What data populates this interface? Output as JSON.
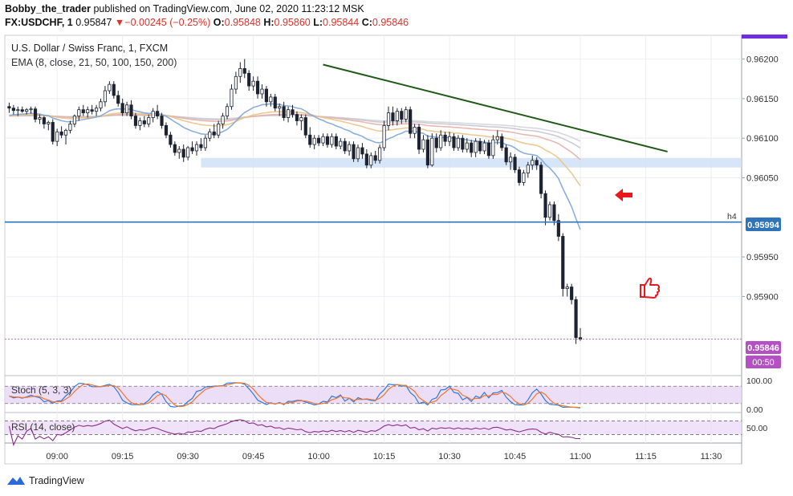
{
  "header": {
    "line1": {
      "author": "Bobby_the_trader",
      "rest": " published on TradingView.com, June 02, 2020 11:23:12 MSK"
    },
    "line2": {
      "symbol": "FX:USDCHF, 1",
      "last": "0.95847",
      "change": "−0.00245 (−0.25%)",
      "o_label": "O:",
      "o": "0.95848",
      "h_label": "H:",
      "h": "0.95860",
      "l_label": "L:",
      "l": "0.95844",
      "c_label": "C:",
      "c": "0.95846"
    },
    "arrow_down": "▼"
  },
  "footer": {
    "brand": "TradingView"
  },
  "colors": {
    "up": "#1d2230",
    "down": "#1d2230",
    "trendline": "#1e5a16",
    "support": "#2f74b8",
    "zone": "#cfe0f7",
    "stoch": "#e9d6f5",
    "rsi_line": "#8a2f8a",
    "accent": "#6f2de0"
  },
  "chart_data": [
    {
      "type": "candlestick",
      "title": "U.S. Dollar / Swiss Franc, 1, FXCM",
      "indicator_label": "EMA (8, close, 21, 50, 100, 150, 200)",
      "ylim": [
        0.958,
        0.9623
      ],
      "y_ticks": [
        "0.96200",
        "0.96150",
        "0.96100",
        "0.96050",
        "0.95950",
        "0.95900"
      ],
      "x_ticks": [
        "09:00",
        "09:15",
        "09:30",
        "09:45",
        "10:00",
        "10:15",
        "10:30",
        "10:45",
        "11:00",
        "11:15",
        "11:30"
      ],
      "x_tick_minutes": [
        540,
        555,
        570,
        585,
        600,
        615,
        630,
        645,
        660,
        675,
        690
      ],
      "x_range_minutes": [
        528,
        697
      ],
      "price_labels": {
        "support": "0.95994",
        "last": "0.95846",
        "countdown": "00:50",
        "h4_tag": "h4"
      },
      "support_level": 0.95994,
      "zone": {
        "from_minute": 573,
        "to_minute": 697,
        "low": 0.96063,
        "high": 0.96075
      },
      "trendline": {
        "from": [
          601,
          0.96193
        ],
        "to": [
          680,
          0.96083
        ]
      },
      "annotations": [
        "red-arrow at 11:15 0.96030",
        "thumbs-up at 11:20 0.95914"
      ],
      "candles": [
        [
          0.9614,
          0.96145,
          0.96132,
          0.96138
        ],
        [
          0.96138,
          0.96142,
          0.9613,
          0.96135
        ],
        [
          0.96135,
          0.9614,
          0.96128,
          0.96136
        ],
        [
          0.96136,
          0.9614,
          0.96132,
          0.96134
        ],
        [
          0.96134,
          0.96138,
          0.9613,
          0.96136
        ],
        [
          0.96136,
          0.9614,
          0.96131,
          0.96137
        ],
        [
          0.96137,
          0.9614,
          0.9612,
          0.96124
        ],
        [
          0.96124,
          0.9613,
          0.96118,
          0.96126
        ],
        [
          0.96126,
          0.96128,
          0.96112,
          0.96118
        ],
        [
          0.96118,
          0.96122,
          0.9611,
          0.9612
        ],
        [
          0.9612,
          0.96124,
          0.96092,
          0.96096
        ],
        [
          0.96096,
          0.96112,
          0.9609,
          0.96108
        ],
        [
          0.96108,
          0.96115,
          0.961,
          0.96104
        ],
        [
          0.96104,
          0.96112,
          0.96092,
          0.9611
        ],
        [
          0.9611,
          0.96122,
          0.96106,
          0.96118
        ],
        [
          0.96118,
          0.9613,
          0.96114,
          0.96128
        ],
        [
          0.96128,
          0.9614,
          0.96122,
          0.96136
        ],
        [
          0.96136,
          0.96142,
          0.96128,
          0.96132
        ],
        [
          0.96132,
          0.9614,
          0.96126,
          0.96136
        ],
        [
          0.96136,
          0.96142,
          0.9613,
          0.96134
        ],
        [
          0.96134,
          0.96142,
          0.96128,
          0.96138
        ],
        [
          0.96138,
          0.9615,
          0.96134,
          0.96146
        ],
        [
          0.96146,
          0.96166,
          0.9614,
          0.9616
        ],
        [
          0.9616,
          0.96172,
          0.96156,
          0.96168
        ],
        [
          0.96168,
          0.96172,
          0.9615,
          0.96154
        ],
        [
          0.96154,
          0.9616,
          0.9614,
          0.96144
        ],
        [
          0.96144,
          0.9615,
          0.96128,
          0.96132
        ],
        [
          0.96132,
          0.96146,
          0.96128,
          0.96142
        ],
        [
          0.96142,
          0.96148,
          0.96124,
          0.96128
        ],
        [
          0.96128,
          0.96132,
          0.96112,
          0.96116
        ],
        [
          0.96116,
          0.96126,
          0.9611,
          0.96122
        ],
        [
          0.96122,
          0.96128,
          0.96114,
          0.96118
        ],
        [
          0.96118,
          0.9613,
          0.96114,
          0.96126
        ],
        [
          0.96126,
          0.96138,
          0.9612,
          0.96134
        ],
        [
          0.96134,
          0.96142,
          0.96124,
          0.96128
        ],
        [
          0.96128,
          0.96132,
          0.96112,
          0.96116
        ],
        [
          0.96116,
          0.9612,
          0.961,
          0.96104
        ],
        [
          0.96104,
          0.96108,
          0.96088,
          0.96092
        ],
        [
          0.96092,
          0.96096,
          0.96078,
          0.96082
        ],
        [
          0.96082,
          0.9609,
          0.96074,
          0.96086
        ],
        [
          0.96086,
          0.96092,
          0.9607,
          0.96076
        ],
        [
          0.96076,
          0.9609,
          0.96072,
          0.96088
        ],
        [
          0.96088,
          0.96096,
          0.9608,
          0.96084
        ],
        [
          0.96084,
          0.96096,
          0.96078,
          0.96092
        ],
        [
          0.96092,
          0.961,
          0.96084,
          0.96088
        ],
        [
          0.96088,
          0.96104,
          0.96084,
          0.961
        ],
        [
          0.961,
          0.96112,
          0.96096,
          0.96108
        ],
        [
          0.96108,
          0.96118,
          0.961,
          0.96104
        ],
        [
          0.96104,
          0.96122,
          0.961,
          0.96118
        ],
        [
          0.96118,
          0.96132,
          0.96112,
          0.96128
        ],
        [
          0.96128,
          0.96144,
          0.96124,
          0.9614
        ],
        [
          0.9614,
          0.96168,
          0.96136,
          0.96162
        ],
        [
          0.96162,
          0.96184,
          0.96156,
          0.96178
        ],
        [
          0.96178,
          0.96196,
          0.9617,
          0.96188
        ],
        [
          0.96188,
          0.962,
          0.96176,
          0.96182
        ],
        [
          0.96182,
          0.96186,
          0.9616,
          0.96166
        ],
        [
          0.96166,
          0.96178,
          0.9616,
          0.96172
        ],
        [
          0.96172,
          0.96178,
          0.9615,
          0.96156
        ],
        [
          0.96156,
          0.96168,
          0.9615,
          0.96162
        ],
        [
          0.96162,
          0.96166,
          0.9614,
          0.96146
        ],
        [
          0.96146,
          0.96156,
          0.9614,
          0.96152
        ],
        [
          0.96152,
          0.96156,
          0.96134,
          0.96138
        ],
        [
          0.96138,
          0.96144,
          0.96128,
          0.9614
        ],
        [
          0.9614,
          0.96146,
          0.96122,
          0.96126
        ],
        [
          0.96126,
          0.9614,
          0.9612,
          0.96136
        ],
        [
          0.96136,
          0.96142,
          0.96126,
          0.9613
        ],
        [
          0.9613,
          0.96134,
          0.96116,
          0.96122
        ],
        [
          0.96122,
          0.9613,
          0.9611,
          0.96126
        ],
        [
          0.96126,
          0.9613,
          0.961,
          0.96104
        ],
        [
          0.96104,
          0.96114,
          0.96088,
          0.96092
        ],
        [
          0.96092,
          0.96104,
          0.96086,
          0.961
        ],
        [
          0.961,
          0.96104,
          0.9609,
          0.96094
        ],
        [
          0.96094,
          0.96106,
          0.9609,
          0.96102
        ],
        [
          0.96102,
          0.96106,
          0.96088,
          0.96092
        ],
        [
          0.96092,
          0.96106,
          0.96088,
          0.96102
        ],
        [
          0.96102,
          0.96106,
          0.96086,
          0.9609
        ],
        [
          0.9609,
          0.961,
          0.96086,
          0.96096
        ],
        [
          0.96096,
          0.961,
          0.9608,
          0.96084
        ],
        [
          0.96084,
          0.96096,
          0.96078,
          0.96092
        ],
        [
          0.96092,
          0.96096,
          0.9607,
          0.96074
        ],
        [
          0.96074,
          0.96092,
          0.9607,
          0.96088
        ],
        [
          0.96088,
          0.96094,
          0.96074,
          0.9608
        ],
        [
          0.9608,
          0.96086,
          0.96062,
          0.96066
        ],
        [
          0.96066,
          0.96082,
          0.96062,
          0.96078
        ],
        [
          0.96078,
          0.96084,
          0.96068,
          0.96072
        ],
        [
          0.96072,
          0.96092,
          0.96068,
          0.96088
        ],
        [
          0.96088,
          0.96122,
          0.96084,
          0.96116
        ],
        [
          0.96116,
          0.9614,
          0.9611,
          0.96132
        ],
        [
          0.96132,
          0.9614,
          0.96116,
          0.96122
        ],
        [
          0.96122,
          0.96138,
          0.96116,
          0.96134
        ],
        [
          0.96134,
          0.96138,
          0.96118,
          0.96124
        ],
        [
          0.96124,
          0.9614,
          0.9612,
          0.96136
        ],
        [
          0.96136,
          0.9614,
          0.961,
          0.96106
        ],
        [
          0.96106,
          0.96118,
          0.961,
          0.96114
        ],
        [
          0.96114,
          0.96118,
          0.9608,
          0.96086
        ],
        [
          0.96086,
          0.96104,
          0.96082,
          0.96098
        ],
        [
          0.96098,
          0.96104,
          0.96062,
          0.96066
        ],
        [
          0.96066,
          0.96106,
          0.96064,
          0.961
        ],
        [
          0.961,
          0.96106,
          0.96082,
          0.96088
        ],
        [
          0.96088,
          0.9611,
          0.96084,
          0.96104
        ],
        [
          0.96104,
          0.96108,
          0.9609,
          0.96096
        ],
        [
          0.96096,
          0.96108,
          0.9609,
          0.96102
        ],
        [
          0.96102,
          0.96106,
          0.96084,
          0.96088
        ],
        [
          0.96088,
          0.96104,
          0.96084,
          0.961
        ],
        [
          0.961,
          0.96104,
          0.96082,
          0.96086
        ],
        [
          0.96086,
          0.961,
          0.96082,
          0.96094
        ],
        [
          0.96094,
          0.96098,
          0.96076,
          0.96082
        ],
        [
          0.96082,
          0.961,
          0.96076,
          0.96096
        ],
        [
          0.96096,
          0.961,
          0.9608,
          0.96084
        ],
        [
          0.96084,
          0.96098,
          0.9608,
          0.96094
        ],
        [
          0.96094,
          0.96098,
          0.96074,
          0.96078
        ],
        [
          0.96078,
          0.96104,
          0.96074,
          0.96098
        ],
        [
          0.96098,
          0.9611,
          0.96092,
          0.96102
        ],
        [
          0.96102,
          0.96106,
          0.96084,
          0.96088
        ],
        [
          0.96088,
          0.96092,
          0.96066,
          0.9607
        ],
        [
          0.9607,
          0.96082,
          0.9606,
          0.96076
        ],
        [
          0.96076,
          0.9608,
          0.96056,
          0.9606
        ],
        [
          0.9606,
          0.96064,
          0.9604,
          0.96044
        ],
        [
          0.96044,
          0.9606,
          0.9604,
          0.96056
        ],
        [
          0.96056,
          0.9607,
          0.9605,
          0.96066
        ],
        [
          0.96066,
          0.96078,
          0.9606,
          0.96072
        ],
        [
          0.96072,
          0.96076,
          0.9606,
          0.96066
        ],
        [
          0.96066,
          0.9607,
          0.96024,
          0.9603
        ],
        [
          0.9603,
          0.96034,
          0.9599,
          0.96
        ],
        [
          0.96,
          0.9602,
          0.95996,
          0.96016
        ],
        [
          0.96016,
          0.9602,
          0.9599,
          0.95996
        ],
        [
          0.95996,
          0.96004,
          0.9597,
          0.95976
        ],
        [
          0.95976,
          0.9598,
          0.959,
          0.9591
        ],
        [
          0.9591,
          0.95916,
          0.959,
          0.95912
        ],
        [
          0.95912,
          0.95916,
          0.9589,
          0.95896
        ],
        [
          0.95896,
          0.959,
          0.9584,
          0.95848
        ],
        [
          0.95848,
          0.9586,
          0.95844,
          0.95846
        ]
      ]
    },
    {
      "type": "line",
      "title": "Stoch (5, 3, 3)",
      "ylim": [
        0,
        100
      ],
      "y_ticks": [
        "100.00",
        "0.00"
      ],
      "bands": [
        80,
        20
      ]
    },
    {
      "type": "line",
      "title": "RSI (14, close)",
      "ylim": [
        10,
        90
      ],
      "y_ticks": [
        "50.00"
      ],
      "bands": [
        70,
        30
      ]
    }
  ]
}
